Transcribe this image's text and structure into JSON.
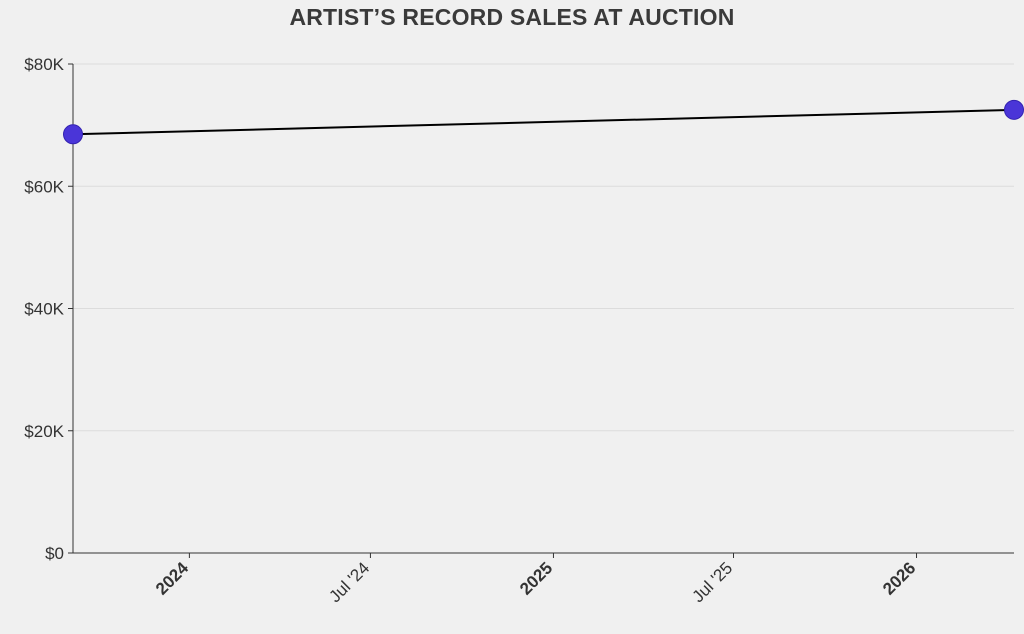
{
  "chart_data": {
    "type": "line",
    "title": "ARTIST’S RECORD SALES AT AUCTION",
    "xlabel": "",
    "ylabel": "",
    "x_axis_type": "time",
    "xlim": [
      "2023-09-06",
      "2026-04-09"
    ],
    "ylim": [
      0,
      80000
    ],
    "y_ticks": [
      {
        "value": 0,
        "label": "$0"
      },
      {
        "value": 20000,
        "label": "$20K"
      },
      {
        "value": 40000,
        "label": "$40K"
      },
      {
        "value": 60000,
        "label": "$60K"
      },
      {
        "value": 80000,
        "label": "$80K"
      }
    ],
    "x_ticks": [
      {
        "value": "2024-01-01",
        "label": "2024",
        "major": true
      },
      {
        "value": "2024-07-01",
        "label": "Jul '24",
        "major": false
      },
      {
        "value": "2025-01-01",
        "label": "2025",
        "major": true
      },
      {
        "value": "2025-07-01",
        "label": "Jul '25",
        "major": false
      },
      {
        "value": "2026-01-01",
        "label": "2026",
        "major": true
      }
    ],
    "grid": "horizontal",
    "legend": "none",
    "series": [
      {
        "points": [
          {
            "x": "2023-09-06",
            "y": 68500
          },
          {
            "x": "2026-04-09",
            "y": 72500
          }
        ],
        "line_color": "#000000",
        "marker_color": "#4a35d8"
      }
    ]
  }
}
